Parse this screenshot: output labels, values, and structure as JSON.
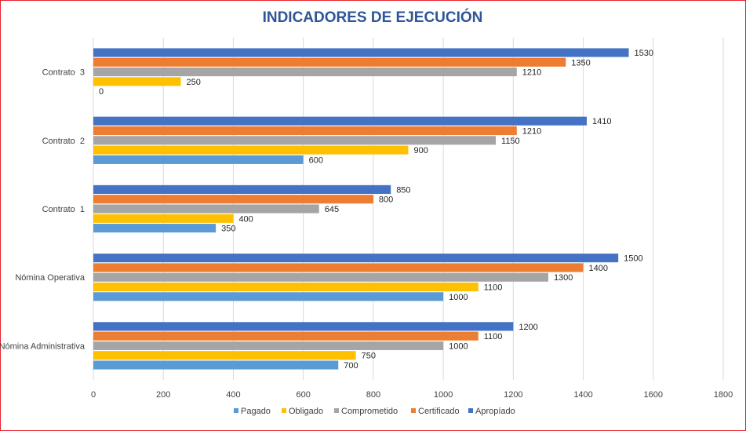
{
  "chart_data": {
    "type": "bar",
    "orientation": "horizontal",
    "title": "INDICADORES DE EJECUCIÓN",
    "title_color": "#2e5597",
    "categories": [
      "Nómina Administrativa",
      "Nómina Operativa",
      "Contrato 1",
      "Contrato 2",
      "Contrato 3"
    ],
    "category_labels": [
      "Nómina Administrativa",
      "Nómina Operativa",
      "Contrato  1",
      "Contrato  2",
      "Contrato  3"
    ],
    "series": [
      {
        "name": "Pagado",
        "color": "#5b9bd5",
        "values": [
          700,
          1000,
          350,
          600,
          0
        ]
      },
      {
        "name": "Obligado",
        "color": "#ffc000",
        "values": [
          750,
          1100,
          400,
          900,
          250
        ]
      },
      {
        "name": "Comprometido",
        "color": "#a5a5a5",
        "values": [
          1000,
          1300,
          645,
          1150,
          1210
        ]
      },
      {
        "name": "Certificado",
        "color": "#ed7d31",
        "values": [
          1100,
          1400,
          800,
          1210,
          1350
        ]
      },
      {
        "name": "Apropíado",
        "color": "#4472c4",
        "values": [
          1200,
          1500,
          850,
          1410,
          1530
        ]
      }
    ],
    "x_ticks": [
      0,
      200,
      400,
      600,
      800,
      1000,
      1200,
      1400,
      1600,
      1800
    ],
    "xlim": [
      0,
      1800
    ],
    "grid": true,
    "legend_position": "bottom",
    "border_color": "#e8222a"
  }
}
